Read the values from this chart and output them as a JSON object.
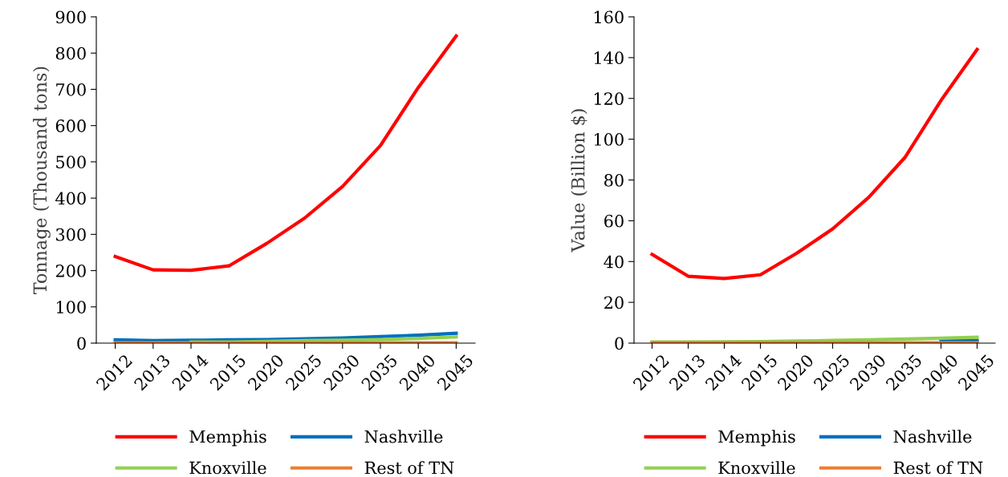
{
  "chart_data": [
    {
      "type": "line",
      "ylabel": "Tonnage (Thousand tons)",
      "categories": [
        "2012",
        "2013",
        "2014",
        "2015",
        "2020",
        "2025",
        "2030",
        "2035",
        "2040",
        "2045"
      ],
      "ylim": [
        0,
        900
      ],
      "yticks": [
        0,
        100,
        200,
        300,
        400,
        500,
        600,
        700,
        800,
        900
      ],
      "grid": false,
      "legend": "bottom",
      "marker": "none",
      "series": [
        {
          "name": "Memphis",
          "color": "#ff0000",
          "values": [
            239,
            202,
            201,
            213,
            275,
            345,
            432,
            545,
            705,
            847
          ]
        },
        {
          "name": "Nashville",
          "color": "#0070c0",
          "values": [
            9,
            7,
            8,
            9,
            10,
            12,
            14,
            18,
            22,
            27
          ]
        },
        {
          "name": "Knoxville",
          "color": "#92d050",
          "values": [
            null,
            null,
            3,
            3,
            5,
            7,
            8,
            10,
            13,
            17
          ]
        },
        {
          "name": "Rest of TN",
          "color": "#ed7d31",
          "values": [
            1,
            1,
            1,
            1,
            1,
            1,
            1,
            1,
            1,
            1
          ]
        }
      ]
    },
    {
      "type": "line",
      "ylabel": "Value (Billion $)",
      "categories": [
        "2012",
        "2013",
        "2014",
        "2015",
        "2020",
        "2025",
        "2030",
        "2035",
        "2040",
        "2045"
      ],
      "ylim": [
        0,
        160
      ],
      "yticks": [
        0,
        20,
        40,
        60,
        80,
        100,
        120,
        140,
        160
      ],
      "grid": false,
      "legend": "bottom",
      "marker": "none",
      "series": [
        {
          "name": "Memphis",
          "color": "#ff0000",
          "values": [
            43.5,
            32.8,
            31.7,
            33.5,
            44,
            56,
            71.5,
            91,
            119,
            144
          ]
        },
        {
          "name": "Nashville",
          "color": "#0070c0",
          "values": [
            null,
            null,
            null,
            null,
            null,
            null,
            null,
            null,
            1.0,
            1.3
          ]
        },
        {
          "name": "Knoxville",
          "color": "#92d050",
          "values": [
            0.6,
            0.6,
            0.7,
            0.8,
            1.0,
            1.3,
            1.6,
            2.0,
            2.4,
            2.9
          ]
        },
        {
          "name": "Rest of TN",
          "color": "#ed7d31",
          "values": [
            0.2,
            0.2,
            0.2,
            0.2,
            0.2,
            0.2,
            0.2,
            0.2,
            0.2,
            0.2
          ]
        }
      ]
    }
  ]
}
